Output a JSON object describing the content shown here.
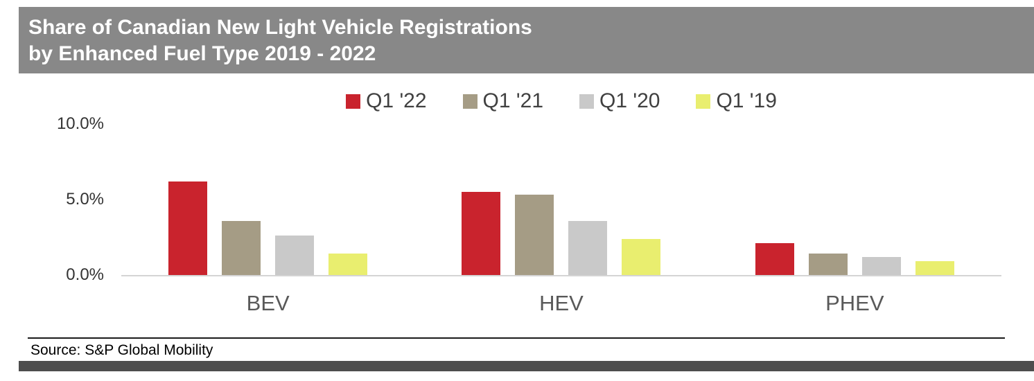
{
  "header": {
    "title_line1": "Share of Canadian New Light Vehicle Registrations",
    "title_line2": "by Enhanced Fuel Type 2019 - 2022"
  },
  "source": "Source: S&P Global Mobility",
  "chart_data": {
    "type": "bar",
    "title": "Share of Canadian New Light Vehicle Registrations by Enhanced Fuel Type 2019 - 2022",
    "categories": [
      "BEV",
      "HEV",
      "PHEV"
    ],
    "series": [
      {
        "name": "Q1 '22",
        "color": "#c9232d",
        "values": [
          6.2,
          5.5,
          2.1
        ]
      },
      {
        "name": "Q1 '21",
        "color": "#a59c85",
        "values": [
          3.6,
          5.3,
          1.4
        ]
      },
      {
        "name": "Q1 '20",
        "color": "#c9c9c9",
        "values": [
          2.6,
          3.6,
          1.2
        ]
      },
      {
        "name": "Q1 '19",
        "color": "#e9ee6f",
        "values": [
          1.4,
          2.4,
          0.9
        ]
      }
    ],
    "ylim": [
      0,
      10
    ],
    "yticks": [
      "10.0%",
      "5.0%",
      "0.0%"
    ],
    "ylabel": "",
    "xlabel": "",
    "grid": false,
    "legend_position": "top"
  }
}
